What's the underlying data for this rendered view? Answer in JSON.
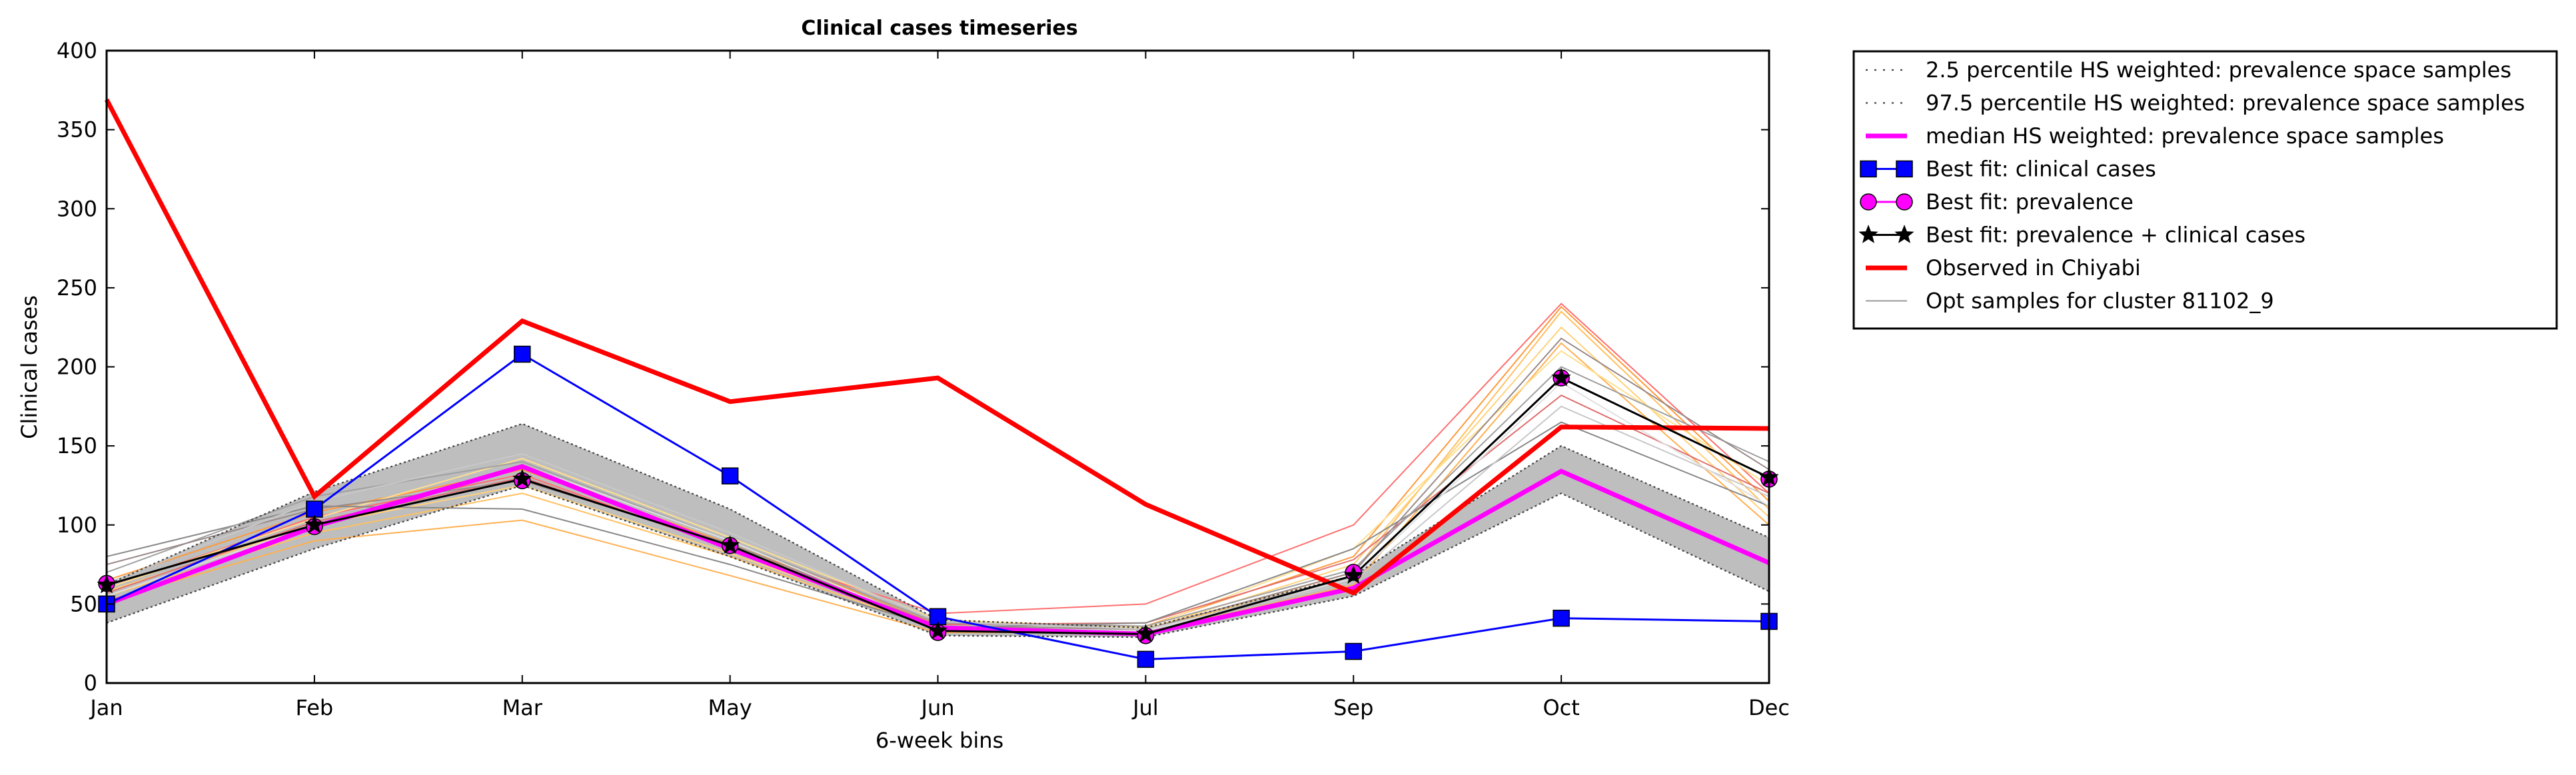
{
  "chart_data": {
    "type": "line",
    "title": "Clinical cases timeseries",
    "xlabel": "6-week bins",
    "ylabel": "Clinical cases",
    "categories": [
      "Jan",
      "Feb",
      "Mar",
      "May",
      "Jun",
      "Jul",
      "Sep",
      "Oct",
      "Dec"
    ],
    "ylim": [
      0,
      400
    ],
    "yticks": [
      0,
      50,
      100,
      150,
      200,
      250,
      300,
      350,
      400
    ],
    "grid": false,
    "legend_position": "outside-top-right",
    "band": {
      "lower_name": "2.5 percentile HS weighted: prevalence space samples",
      "upper_name": "97.5 percentile HS weighted: prevalence space samples",
      "lower": [
        38,
        85,
        125,
        80,
        30,
        29,
        55,
        120,
        58
      ],
      "upper": [
        62,
        121,
        164,
        110,
        40,
        35,
        68,
        150,
        92
      ],
      "color": "#bebebe"
    },
    "series": [
      {
        "name": "median HS weighted: prevalence space samples",
        "values": [
          50,
          99,
          137,
          85,
          35,
          31,
          60,
          134,
          76
        ],
        "color": "#ff00ff",
        "style": "thick"
      },
      {
        "name": "Best fit: clinical cases",
        "values": [
          50,
          110,
          208,
          131,
          42,
          15,
          20,
          41,
          39
        ],
        "color": "#0000ff",
        "marker": "square"
      },
      {
        "name": "Best fit: prevalence",
        "values": [
          63,
          99,
          128,
          87,
          32,
          30,
          70,
          193,
          129
        ],
        "color": "#ff00ff",
        "marker": "circle"
      },
      {
        "name": "Best fit: prevalence + clinical cases",
        "values": [
          62,
          100,
          129,
          87,
          33,
          31,
          68,
          193,
          130
        ],
        "color": "#000000",
        "marker": "star"
      },
      {
        "name": "Observed in Chiyabi",
        "values": [
          369,
          118,
          229,
          178,
          193,
          113,
          57,
          162,
          161
        ],
        "color": "#ff0000",
        "style": "thick"
      },
      {
        "name": "Opt samples for cluster 81102_9",
        "color": "#999999",
        "style": "thin"
      }
    ],
    "opt_samples": [
      {
        "color": "#ff6e6e",
        "values": [
          60,
          105,
          132,
          85,
          44,
          50,
          100,
          240,
          120
        ]
      },
      {
        "color": "#ff9a3c",
        "values": [
          65,
          108,
          135,
          88,
          38,
          36,
          80,
          238,
          115
        ]
      },
      {
        "color": "#ffc060",
        "values": [
          55,
          95,
          120,
          80,
          34,
          33,
          70,
          235,
          110
        ]
      },
      {
        "color": "#ffd27a",
        "values": [
          58,
          100,
          125,
          82,
          36,
          34,
          75,
          225,
          105
        ]
      },
      {
        "color": "#ffb050",
        "values": [
          52,
          90,
          103,
          68,
          32,
          32,
          62,
          215,
          100
        ]
      },
      {
        "color": "#ffe090",
        "values": [
          60,
          104,
          142,
          92,
          40,
          35,
          85,
          210,
          125
        ]
      },
      {
        "color": "#e07070",
        "values": [
          57,
          102,
          130,
          86,
          37,
          38,
          78,
          182,
          120
        ]
      },
      {
        "color": "#888888",
        "values": [
          80,
          112,
          110,
          75,
          35,
          38,
          85,
          165,
          112
        ]
      },
      {
        "color": "#a0a0a0",
        "values": [
          70,
          118,
          140,
          90,
          38,
          36,
          72,
          200,
          140
        ]
      },
      {
        "color": "#9a8a8a",
        "values": [
          75,
          110,
          128,
          88,
          36,
          34,
          70,
          218,
          135
        ]
      },
      {
        "color": "#c8c8c8",
        "values": [
          63,
          115,
          145,
          95,
          39,
          34,
          64,
          175,
          118
        ]
      },
      {
        "color": "#e0e0e0",
        "values": [
          55,
          100,
          138,
          90,
          35,
          33,
          66,
          190,
          112
        ]
      }
    ]
  }
}
